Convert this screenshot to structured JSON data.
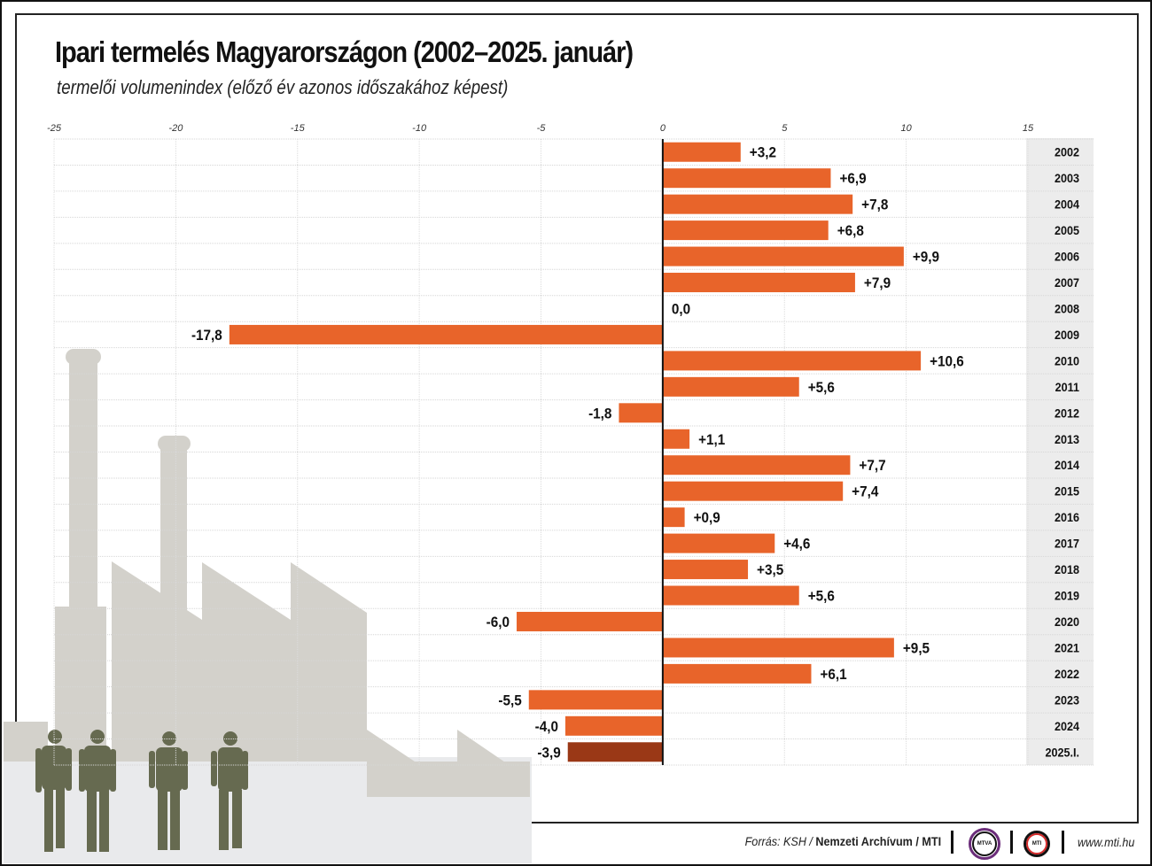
{
  "header": {
    "title": "Ipari termelés Magyarországon (2002–2025. január)",
    "subtitle": "termelői volumenindex (előző év azonos időszakához képest)"
  },
  "footer": {
    "source_prefix": "Forrás: KSH /",
    "source_bold": "Nemzeti Archívum / MTI",
    "logo_mtva": "MTVA",
    "logo_mti": "MTI",
    "url": "www.mti.hu"
  },
  "colors": {
    "bar": "#e8642a",
    "bar_highlight": "#9a3816",
    "year_column_bg": "#ececec",
    "silhouette_light": "#d3d1cb",
    "silhouette_dark": "#666a50"
  },
  "chart_data": {
    "type": "bar",
    "orientation": "horizontal",
    "title": "Ipari termelés Magyarországon (2002–2025. január)",
    "subtitle": "termelői volumenindex (előző év azonos időszakához képest)",
    "xlabel": "",
    "ylabel": "",
    "xlim": [
      -25,
      15
    ],
    "xticks": [
      -25,
      -20,
      -15,
      -10,
      -5,
      0,
      5,
      10,
      15
    ],
    "grid": true,
    "categories": [
      "2002",
      "2003",
      "2004",
      "2005",
      "2006",
      "2007",
      "2008",
      "2009",
      "2010",
      "2011",
      "2012",
      "2013",
      "2014",
      "2015",
      "2016",
      "2017",
      "2018",
      "2019",
      "2020",
      "2021",
      "2022",
      "2023",
      "2024",
      "2025.I."
    ],
    "values": [
      3.2,
      6.9,
      7.8,
      6.8,
      9.9,
      7.9,
      0.0,
      -17.8,
      10.6,
      5.6,
      -1.8,
      1.1,
      7.7,
      7.4,
      0.9,
      4.6,
      3.5,
      5.6,
      -6.0,
      9.5,
      6.1,
      -5.5,
      -4.0,
      -3.9
    ],
    "labels": [
      "+3,2",
      "+6,9",
      "+7,8",
      "+6,8",
      "+9,9",
      "+7,9",
      "0,0",
      "-17,8",
      "+10,6",
      "+5,6",
      "-1,8",
      "+1,1",
      "+7,7",
      "+7,4",
      "+0,9",
      "+4,6",
      "+3,5",
      "+5,6",
      "-6,0",
      "+9,5",
      "+6,1",
      "-5,5",
      "-4,0",
      "-3,9"
    ],
    "highlight_index": 23
  }
}
